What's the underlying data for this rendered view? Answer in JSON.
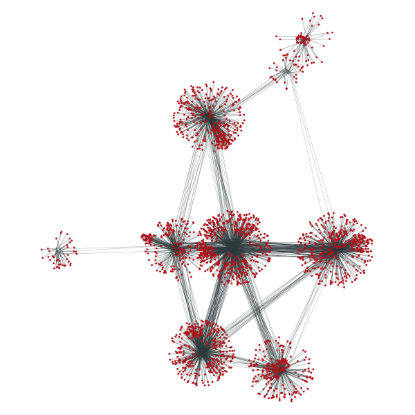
{
  "graph": {
    "background_color": "#ffffff",
    "node_color": "#b0121a",
    "edge_color": "#2f3b3d",
    "hub_label": "",
    "clusters": [
      {
        "id": "cluster-top-right",
        "approx_nodes": 70
      },
      {
        "id": "cluster-top-hub",
        "approx_nodes": 30
      },
      {
        "id": "cluster-upper-left",
        "approx_nodes": 350
      },
      {
        "id": "cluster-far-left",
        "approx_nodes": 40
      },
      {
        "id": "cluster-mid-left",
        "approx_nodes": 220
      },
      {
        "id": "cluster-center",
        "approx_nodes": 520
      },
      {
        "id": "cluster-right",
        "approx_nodes": 420
      },
      {
        "id": "cluster-bottom-left",
        "approx_nodes": 360
      },
      {
        "id": "cluster-bottom-right",
        "approx_nodes": 260
      }
    ]
  }
}
